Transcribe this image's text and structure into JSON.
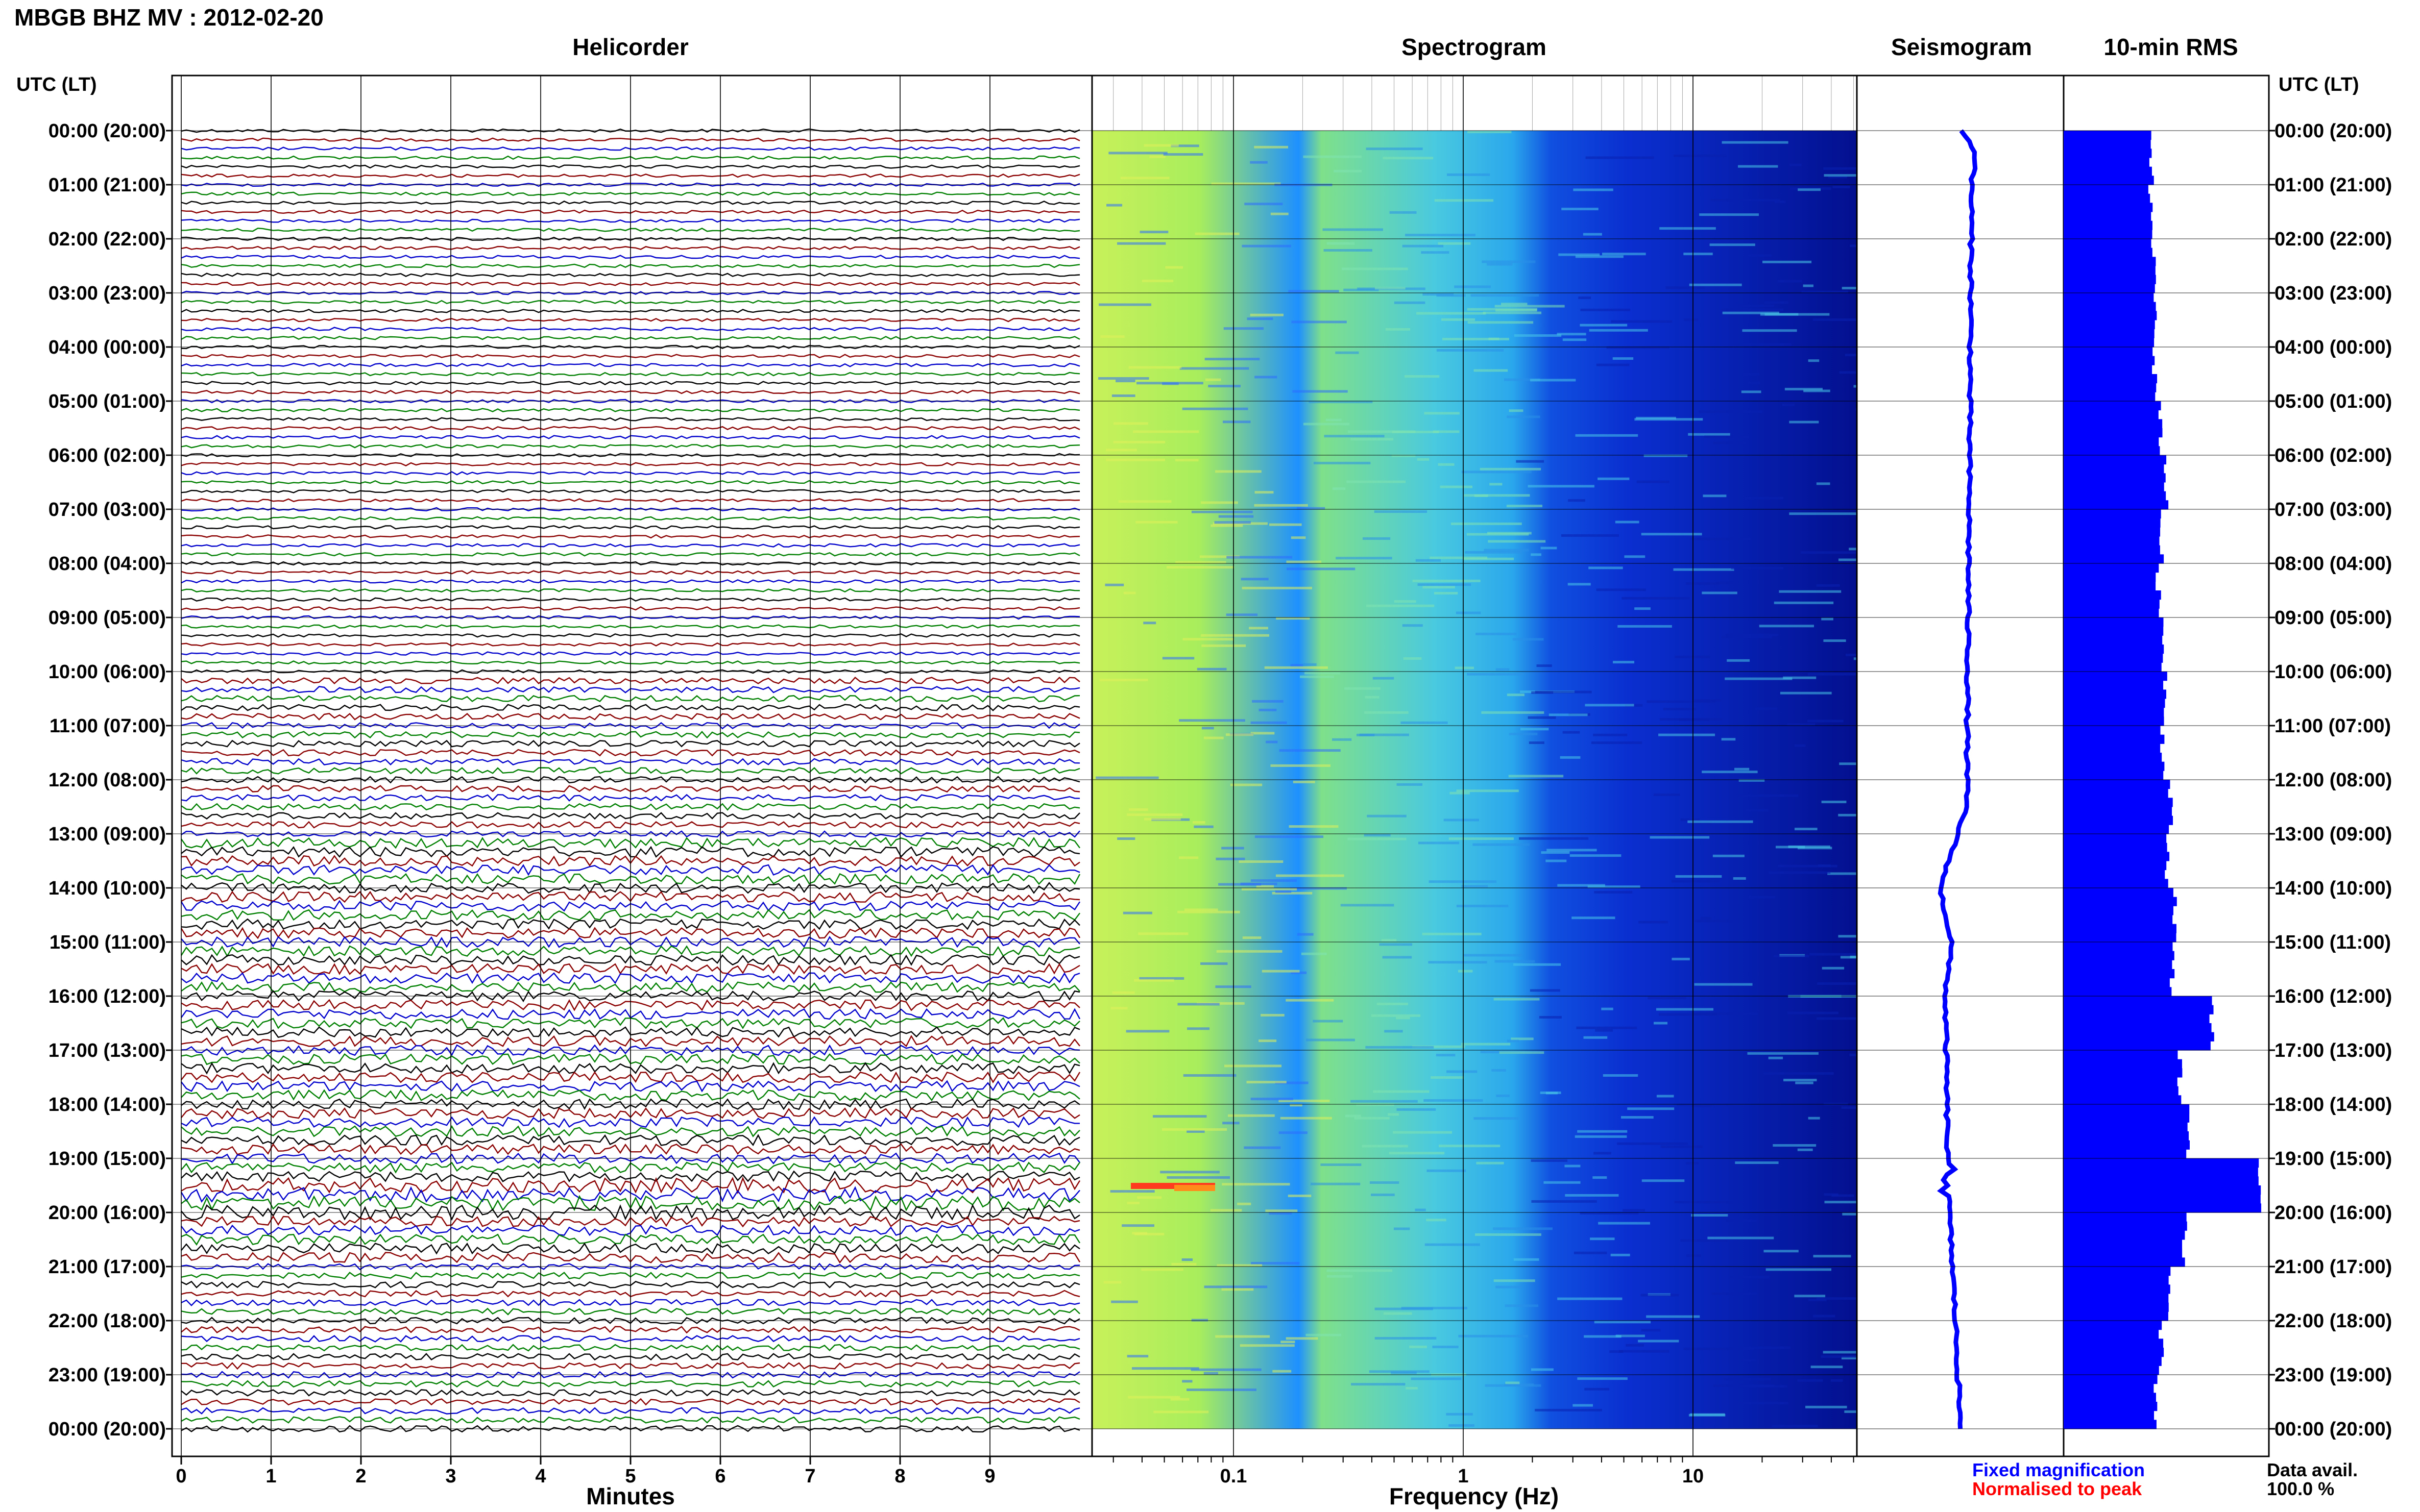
{
  "header": {
    "title": "MBGB BHZ MV : 2012-02-20",
    "time_axis_label": "UTC (LT)"
  },
  "panels": {
    "helicorder": "Helicorder",
    "spectrogram": "Spectrogram",
    "seismogram": "Seismogram",
    "rms": "10-min RMS"
  },
  "time_labels": [
    "00:00 (20:00)",
    "01:00 (21:00)",
    "02:00 (22:00)",
    "03:00 (23:00)",
    "04:00 (00:00)",
    "05:00 (01:00)",
    "06:00 (02:00)",
    "07:00 (03:00)",
    "08:00 (04:00)",
    "09:00 (05:00)",
    "10:00 (06:00)",
    "11:00 (07:00)",
    "12:00 (08:00)",
    "13:00 (09:00)",
    "14:00 (10:00)",
    "15:00 (11:00)",
    "16:00 (12:00)",
    "17:00 (13:00)",
    "18:00 (14:00)",
    "19:00 (15:00)",
    "20:00 (16:00)",
    "21:00 (17:00)",
    "22:00 (18:00)",
    "23:00 (19:00)",
    "00:00 (20:00)"
  ],
  "helicorder": {
    "xlabel": "Minutes",
    "ticks": [
      "0",
      "1",
      "2",
      "3",
      "4",
      "5",
      "6",
      "7",
      "8",
      "9"
    ],
    "trace_colors": [
      "#000000",
      "#8b0000",
      "#0000cd",
      "#008000"
    ]
  },
  "spectrogram": {
    "xlabel": "Frequency (Hz)",
    "ticks": [
      "0.1",
      "1",
      "10"
    ],
    "scale": "log"
  },
  "legend": {
    "fixed": "Fixed magnification",
    "normalised": "Normalised to peak",
    "fixed_color": "#0000ff",
    "normalised_color": "#ff0000"
  },
  "availability": {
    "label": "Data avail.",
    "value": "100.0 %"
  },
  "colors": {
    "trace": "#0000ff",
    "rms": "#0000ff"
  },
  "chart_data": {
    "type": "bar",
    "title": "10-min RMS",
    "description_x": "hour of day UTC",
    "x": [
      0,
      1,
      2,
      3,
      4,
      5,
      6,
      7,
      8,
      9,
      10,
      11,
      12,
      13,
      14,
      15,
      16,
      17,
      18,
      19,
      20,
      21,
      22,
      23
    ],
    "values": [
      0.95,
      0.93,
      0.97,
      1.0,
      0.98,
      1.05,
      1.1,
      1.05,
      1.02,
      1.08,
      1.1,
      1.07,
      1.15,
      1.12,
      1.2,
      1.17,
      1.6,
      1.25,
      1.35,
      2.1,
      1.3,
      1.15,
      1.05,
      1.0
    ],
    "ylim": [
      0,
      2.2
    ]
  }
}
